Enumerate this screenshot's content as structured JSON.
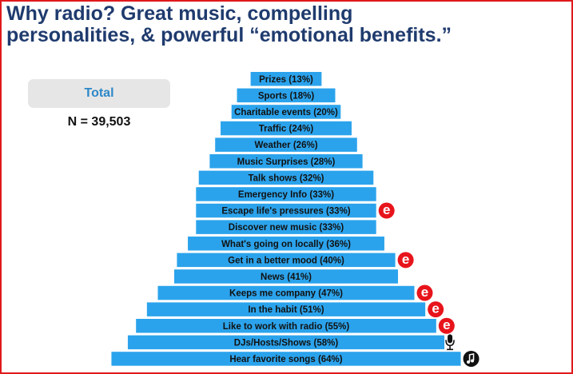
{
  "chart_data": {
    "type": "bar",
    "title_lines": [
      "Why radio? Great music, compelling",
      "personalities, & powerful “emotional benefits.”"
    ],
    "sample": {
      "label": "Total",
      "n": "N = 39,503"
    },
    "color": "#2ba3ec",
    "categories": [
      "Prizes",
      "Sports",
      "Charitable events",
      "Traffic",
      "Weather",
      "Music Surprises",
      "Talk shows",
      "Emergency Info",
      "Escape life's pressures",
      "Discover new music",
      "What's going on locally",
      "Get in a better mood",
      "News",
      "Keeps me company",
      "In the habit",
      "Like to work with radio",
      "DJs/Hosts/Shows",
      "Hear favorite songs"
    ],
    "values": [
      13,
      18,
      20,
      24,
      26,
      28,
      32,
      33,
      33,
      33,
      36,
      40,
      41,
      47,
      51,
      55,
      58,
      64
    ],
    "value_labels": [
      "(13%)",
      "(18%)",
      "(20%)",
      "(24%)",
      "(26%)",
      "(28%)",
      "(32%)",
      "(33%)",
      "(33%)",
      "(33%)",
      "(36%)",
      "(40%)",
      "(41%)",
      "(47%)",
      "(51%)",
      "(55%)",
      "(58%)",
      "(64%)"
    ],
    "markers": [
      null,
      null,
      null,
      null,
      null,
      null,
      null,
      null,
      "e",
      null,
      null,
      "e",
      null,
      "e",
      "e",
      "e",
      "mic",
      "note"
    ]
  }
}
